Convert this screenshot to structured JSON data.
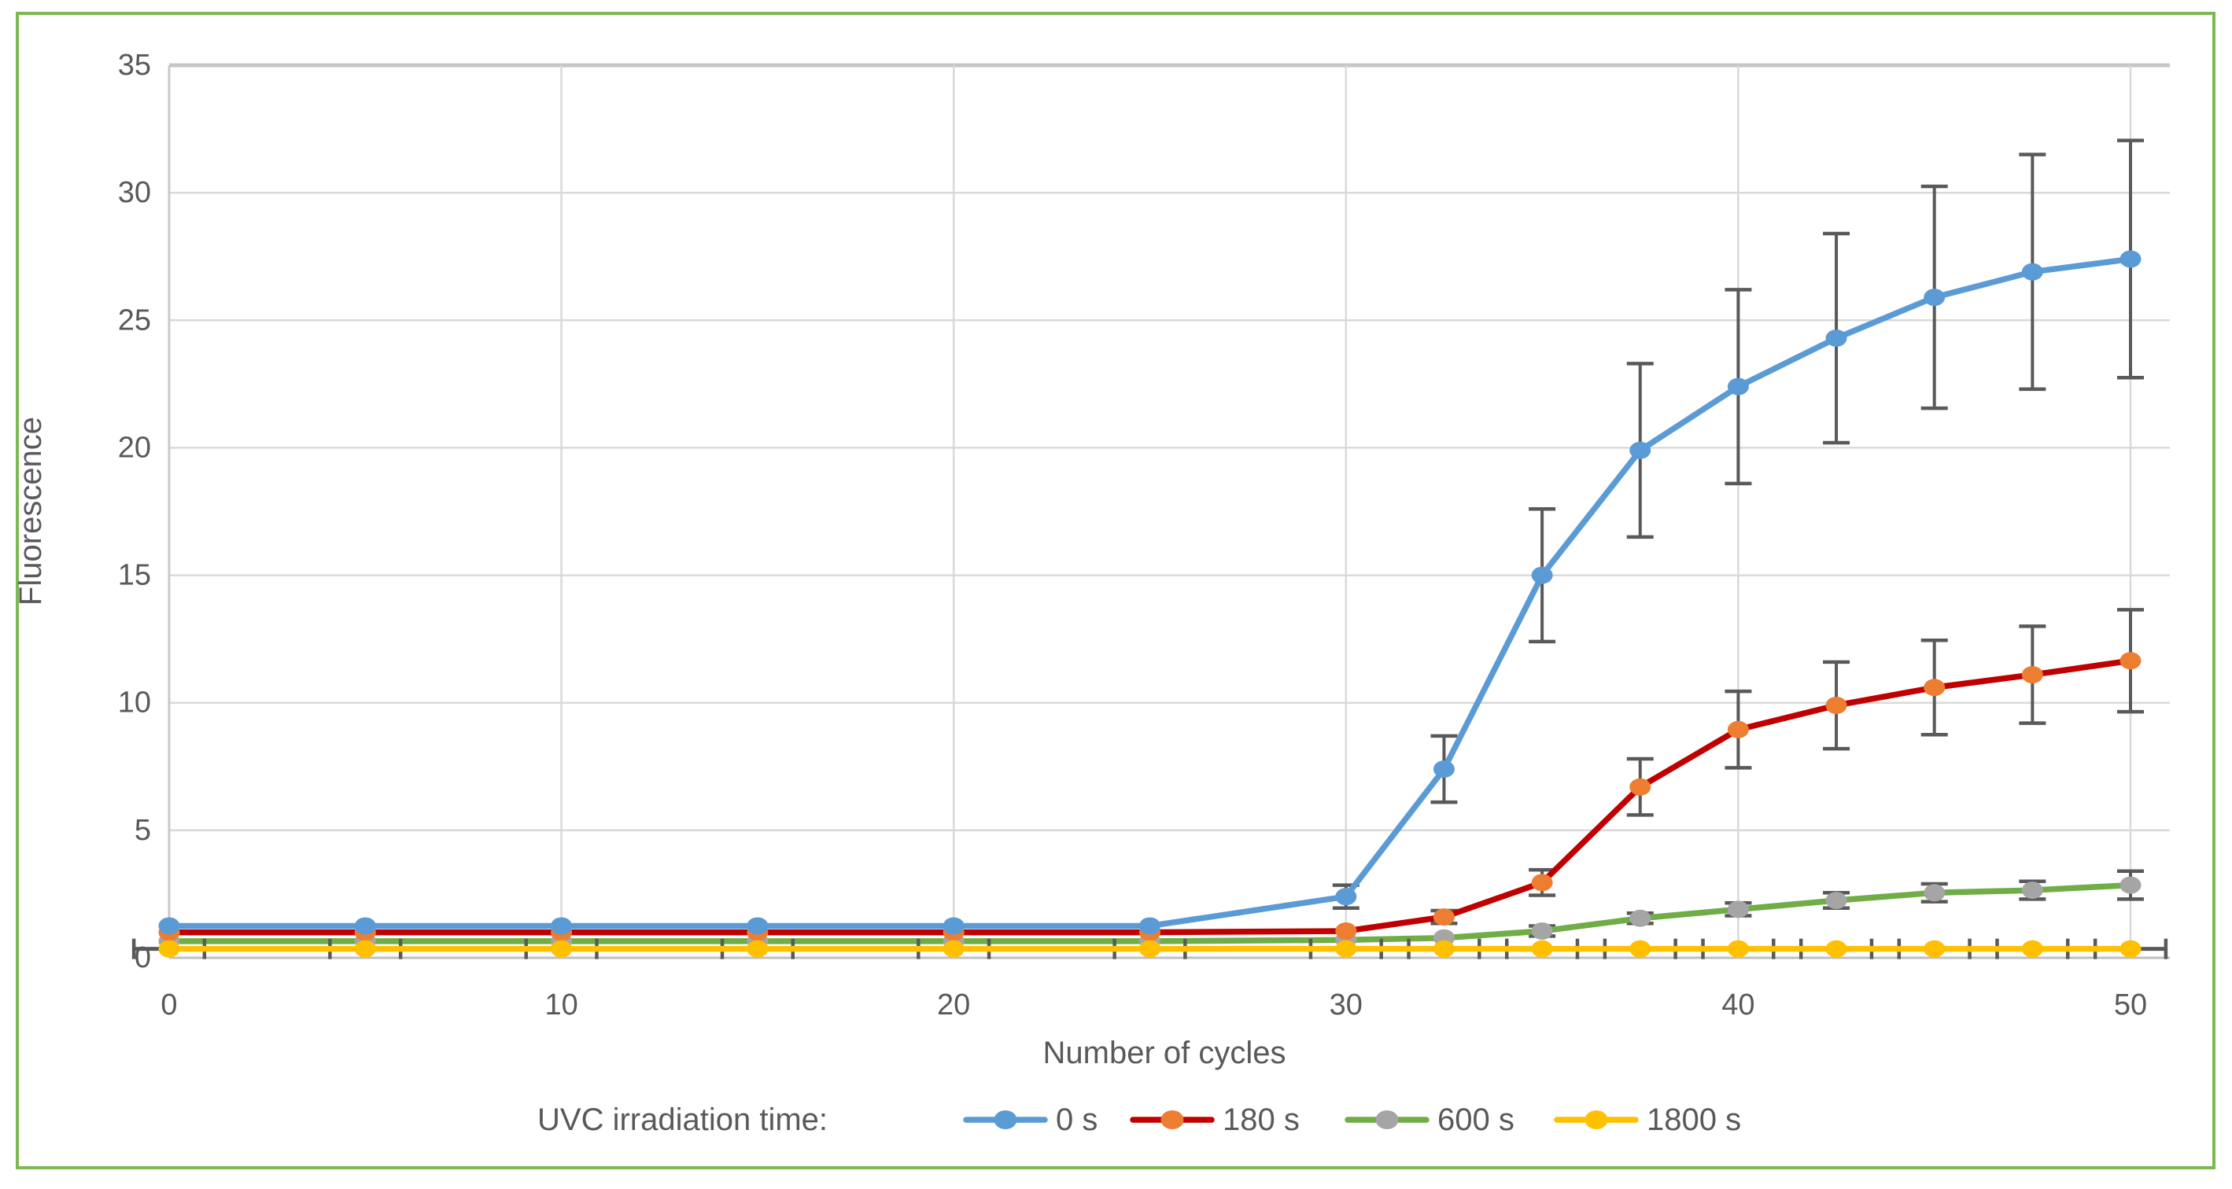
{
  "chart_data": {
    "type": "line",
    "title": "",
    "xlabel": "Number of cycles",
    "ylabel": "Fluorescence",
    "legend_title": "UVC irradiation time:",
    "legend_position": "bottom",
    "grid": true,
    "x": [
      0,
      5,
      10,
      15,
      20,
      25,
      30,
      32.5,
      35,
      37.5,
      40,
      42.5,
      45,
      47.5,
      50
    ],
    "xlim": [
      0,
      51
    ],
    "ylim": [
      0,
      35
    ],
    "xticks": [
      0,
      10,
      20,
      30,
      40,
      50
    ],
    "yticks": [
      0,
      5,
      10,
      15,
      20,
      25,
      30,
      35
    ],
    "series": [
      {
        "name": "0 s",
        "line_color": "#5B9BD5",
        "marker_color": "#5B9BD5",
        "values": [
          1.25,
          1.25,
          1.25,
          1.25,
          1.25,
          1.25,
          2.4,
          7.4,
          15.0,
          19.9,
          22.4,
          24.3,
          25.9,
          26.9,
          27.4
        ],
        "errors": [
          0,
          0,
          0,
          0,
          0,
          0,
          0.45,
          1.3,
          2.6,
          3.4,
          3.8,
          4.1,
          4.35,
          4.6,
          4.65
        ]
      },
      {
        "name": "180 s",
        "line_color": "#C00000",
        "marker_color": "#ED7D31",
        "values": [
          1.0,
          1.0,
          1.0,
          1.0,
          1.0,
          1.0,
          1.05,
          1.6,
          2.95,
          6.7,
          8.95,
          9.9,
          10.6,
          11.1,
          11.65
        ],
        "errors": [
          0,
          0,
          0,
          0,
          0,
          0,
          0,
          0.25,
          0.5,
          1.1,
          1.5,
          1.7,
          1.85,
          1.9,
          2.0
        ]
      },
      {
        "name": "600 s",
        "line_color": "#70AD47",
        "marker_color": "#A5A5A5",
        "values": [
          0.65,
          0.65,
          0.65,
          0.65,
          0.65,
          0.65,
          0.7,
          0.78,
          1.05,
          1.55,
          1.9,
          2.25,
          2.55,
          2.65,
          2.85
        ],
        "errors": [
          0,
          0,
          0,
          0,
          0,
          0,
          0,
          0,
          0.2,
          0.2,
          0.25,
          0.3,
          0.35,
          0.35,
          0.55
        ]
      },
      {
        "name": "1800 s",
        "line_color": "#FFC000",
        "marker_color": "#FFC000",
        "values": [
          0.35,
          0.35,
          0.35,
          0.35,
          0.35,
          0.35,
          0.35,
          0.35,
          0.35,
          0.35,
          0.35,
          0.35,
          0.35,
          0.35,
          0.35
        ],
        "errors": [
          0,
          0,
          0,
          0,
          0,
          0,
          0,
          0,
          0,
          0,
          0,
          0,
          0,
          0,
          0
        ],
        "x_error": 0.9
      }
    ],
    "error_bar_color": "#595959",
    "gridline_color": "#D9D9D9",
    "top_gridline_color": "#C6C6C6",
    "axis_line_color": "#BFBFBF",
    "text_color": "#595959",
    "border_color": "#7CB853"
  }
}
